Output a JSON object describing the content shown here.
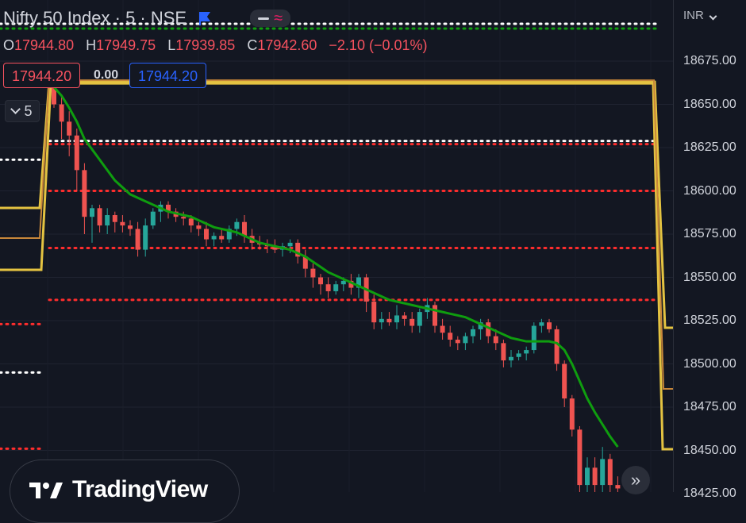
{
  "header": {
    "title": "Nifty 50 Index · 5 · NSE",
    "ohlc": {
      "o_label": "O",
      "o": "17944.80",
      "h_label": "H",
      "h": "17949.75",
      "l_label": "L",
      "l": "17939.85",
      "c_label": "C",
      "c": "17942.60",
      "change": "−2.10 (−0.01%)"
    }
  },
  "trade": {
    "sell_price": "17944.20",
    "spread": "0.00",
    "buy_price": "17944.20",
    "quantity": "5"
  },
  "axis": {
    "currency": "INR"
  },
  "logo": {
    "text": "TradingView"
  },
  "icons": {
    "flag": "flag-icon",
    "minus": "minus-icon",
    "wave": "wave-icon",
    "chevron": "chevron-down-icon",
    "goto": "double-chevron-right-icon"
  },
  "colors": {
    "bg": "#131722",
    "up": "#26a69a",
    "down": "#ef5350",
    "ma": "#0f9d0f",
    "red_dots": "#ff2d2d",
    "white_dots": "#ffffff",
    "gold": "#e4c341",
    "orange": "#c8873a"
  },
  "chart_data": {
    "type": "candlestick",
    "y_axis": {
      "ticks": [
        18675,
        18650,
        18625,
        18600,
        18575,
        18550,
        18525,
        18500,
        18475,
        18450,
        18425
      ],
      "tick_labels": [
        "18675.00",
        "18650.00",
        "18625.00",
        "18600.00",
        "18575.00",
        "18550.00",
        "18525.00",
        "18500.00",
        "18475.00",
        "18450.00",
        "18425.00"
      ]
    },
    "candles": [
      [
        18660,
        18664,
        18648,
        18650
      ],
      [
        18650,
        18655,
        18630,
        18640
      ],
      [
        18640,
        18646,
        18620,
        18632
      ],
      [
        18632,
        18636,
        18600,
        18612
      ],
      [
        18612,
        18616,
        18575,
        18585
      ],
      [
        18585,
        18592,
        18570,
        18590
      ],
      [
        18590,
        18592,
        18576,
        18580
      ],
      [
        18580,
        18590,
        18575,
        18586
      ],
      [
        18586,
        18588,
        18576,
        18582
      ],
      [
        18582,
        18586,
        18576,
        18580
      ],
      [
        18580,
        18583,
        18574,
        18578
      ],
      [
        18578,
        18582,
        18562,
        18566
      ],
      [
        18566,
        18584,
        18562,
        18580
      ],
      [
        18580,
        18590,
        18578,
        18588
      ],
      [
        18588,
        18594,
        18582,
        18592
      ],
      [
        18592,
        18594,
        18584,
        18588
      ],
      [
        18588,
        18590,
        18582,
        18585
      ],
      [
        18585,
        18588,
        18580,
        18584
      ],
      [
        18584,
        18586,
        18576,
        18580
      ],
      [
        18580,
        18582,
        18574,
        18578
      ],
      [
        18578,
        18582,
        18568,
        18572
      ],
      [
        18572,
        18576,
        18568,
        18574
      ],
      [
        18574,
        18578,
        18570,
        18572
      ],
      [
        18572,
        18580,
        18570,
        18578
      ],
      [
        18578,
        18584,
        18574,
        18582
      ],
      [
        18582,
        18586,
        18570,
        18574
      ],
      [
        18574,
        18578,
        18566,
        18570
      ],
      [
        18570,
        18574,
        18566,
        18569
      ],
      [
        18569,
        18572,
        18564,
        18568
      ],
      [
        18568,
        18572,
        18564,
        18566
      ],
      [
        18566,
        18570,
        18562,
        18568
      ],
      [
        18568,
        18572,
        18564,
        18570
      ],
      [
        18570,
        18572,
        18558,
        18562
      ],
      [
        18562,
        18566,
        18550,
        18555
      ],
      [
        18555,
        18558,
        18544,
        18550
      ],
      [
        18550,
        18552,
        18540,
        18546
      ],
      [
        18546,
        18550,
        18538,
        18542
      ],
      [
        18542,
        18548,
        18540,
        18546
      ],
      [
        18546,
        18550,
        18542,
        18548
      ],
      [
        18548,
        18552,
        18540,
        18544
      ],
      [
        18544,
        18552,
        18538,
        18550
      ],
      [
        18550,
        18552,
        18530,
        18536
      ],
      [
        18536,
        18540,
        18520,
        18524
      ],
      [
        18524,
        18530,
        18520,
        18526
      ],
      [
        18526,
        18530,
        18522,
        18524
      ],
      [
        18524,
        18534,
        18520,
        18528
      ],
      [
        18528,
        18530,
        18522,
        18526
      ],
      [
        18526,
        18530,
        18518,
        18522
      ],
      [
        18522,
        18532,
        18518,
        18530
      ],
      [
        18530,
        18538,
        18526,
        18534
      ],
      [
        18534,
        18536,
        18518,
        18522
      ],
      [
        18522,
        18526,
        18514,
        18518
      ],
      [
        18518,
        18522,
        18510,
        18514
      ],
      [
        18514,
        18516,
        18508,
        18512
      ],
      [
        18512,
        18518,
        18508,
        18516
      ],
      [
        18516,
        18522,
        18512,
        18520
      ],
      [
        18520,
        18526,
        18514,
        18524
      ],
      [
        18524,
        18526,
        18512,
        18516
      ],
      [
        18516,
        18520,
        18508,
        18512
      ],
      [
        18512,
        18514,
        18498,
        18502
      ],
      [
        18502,
        18508,
        18498,
        18504
      ],
      [
        18504,
        18508,
        18502,
        18506
      ],
      [
        18506,
        18510,
        18502,
        18508
      ],
      [
        18508,
        18524,
        18506,
        18522
      ],
      [
        18522,
        18526,
        18518,
        18524
      ],
      [
        18524,
        18526,
        18518,
        18520
      ],
      [
        18520,
        18522,
        18496,
        18500
      ],
      [
        18500,
        18502,
        18475,
        18480
      ],
      [
        18480,
        18482,
        18458,
        18462
      ],
      [
        18462,
        18464,
        18425,
        18430
      ],
      [
        18430,
        18446,
        18425,
        18440
      ],
      [
        18440,
        18446,
        18425,
        18430
      ],
      [
        18430,
        18452,
        18425,
        18445
      ],
      [
        18445,
        18448,
        18425,
        18430
      ],
      [
        18430,
        18435,
        18425,
        18428
      ]
    ],
    "moving_average": [
      18660,
      18655,
      18648,
      18640,
      18630,
      18624,
      18618,
      18612,
      18606,
      18602,
      18598,
      18596,
      18594,
      18592,
      18590,
      18588,
      18587,
      18586,
      18585,
      18583,
      18581,
      18579,
      18578,
      18577,
      18576,
      18574,
      18572,
      18570,
      18569,
      18568,
      18567,
      18566,
      18564,
      18562,
      18559,
      18556,
      18553,
      18551,
      18549,
      18547,
      18545,
      18543,
      18541,
      18539,
      18537,
      18536,
      18535,
      18534,
      18533,
      18532,
      18531,
      18530,
      18529,
      18528,
      18527,
      18525,
      18523,
      18521,
      18519,
      18517,
      18515,
      18514,
      18513,
      18513,
      18513,
      18513,
      18512,
      18508,
      18500,
      18490,
      18480,
      18472,
      18465,
      18458,
      18452
    ],
    "red_levels": [
      18627,
      18600,
      18567,
      18537
    ],
    "white_levels": [
      18627
    ],
    "gold_level": 18663
  }
}
